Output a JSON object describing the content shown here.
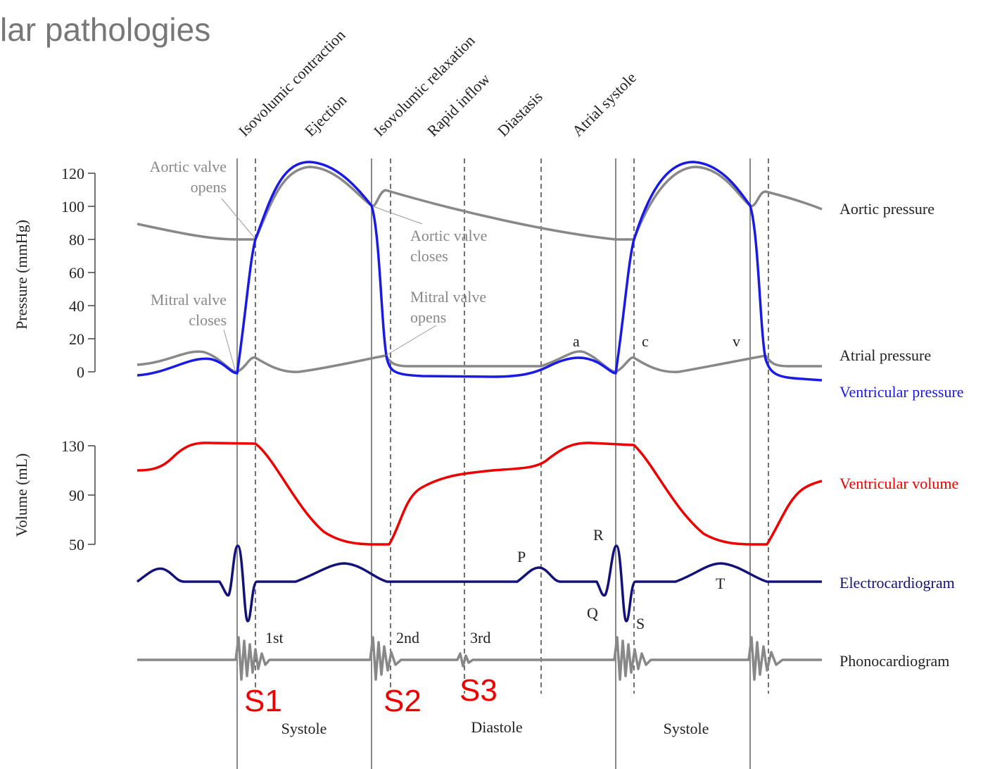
{
  "header": {
    "title": "lar pathologies"
  },
  "phases": [
    "Isovolumic contraction",
    "Ejection",
    "Isovolumic relaxation",
    "Rapid inflow",
    "Diastasis",
    "Atrial systole"
  ],
  "pressure_axis": {
    "label": "Pressure (mmHg)",
    "ticks": [
      "120",
      "100",
      "80",
      "60",
      "40",
      "20",
      "0"
    ]
  },
  "volume_axis": {
    "label": "Volume (mL)",
    "ticks": [
      "130",
      "90",
      "50"
    ]
  },
  "annotations": {
    "aortic_opens": [
      "Aortic valve",
      "opens"
    ],
    "aortic_closes": [
      "Aortic valve",
      "closes"
    ],
    "mitral_closes": [
      "Mitral valve",
      "closes"
    ],
    "mitral_opens": [
      "Mitral valve",
      "opens"
    ],
    "atrial_waves": [
      "a",
      "c",
      "v"
    ],
    "ecg_waves": [
      "P",
      "R",
      "Q",
      "S",
      "T"
    ],
    "sounds": [
      "1st",
      "2nd",
      "3rd"
    ]
  },
  "traces": [
    "Aortic pressure",
    "Atrial pressure",
    "Ventricular pressure",
    "Ventricular volume",
    "Electrocardiogram",
    "Phonocardiogram"
  ],
  "heart_sounds": [
    "S1",
    "S2",
    "S3"
  ],
  "periods": [
    "Systole",
    "Diastole",
    "Systole"
  ]
}
